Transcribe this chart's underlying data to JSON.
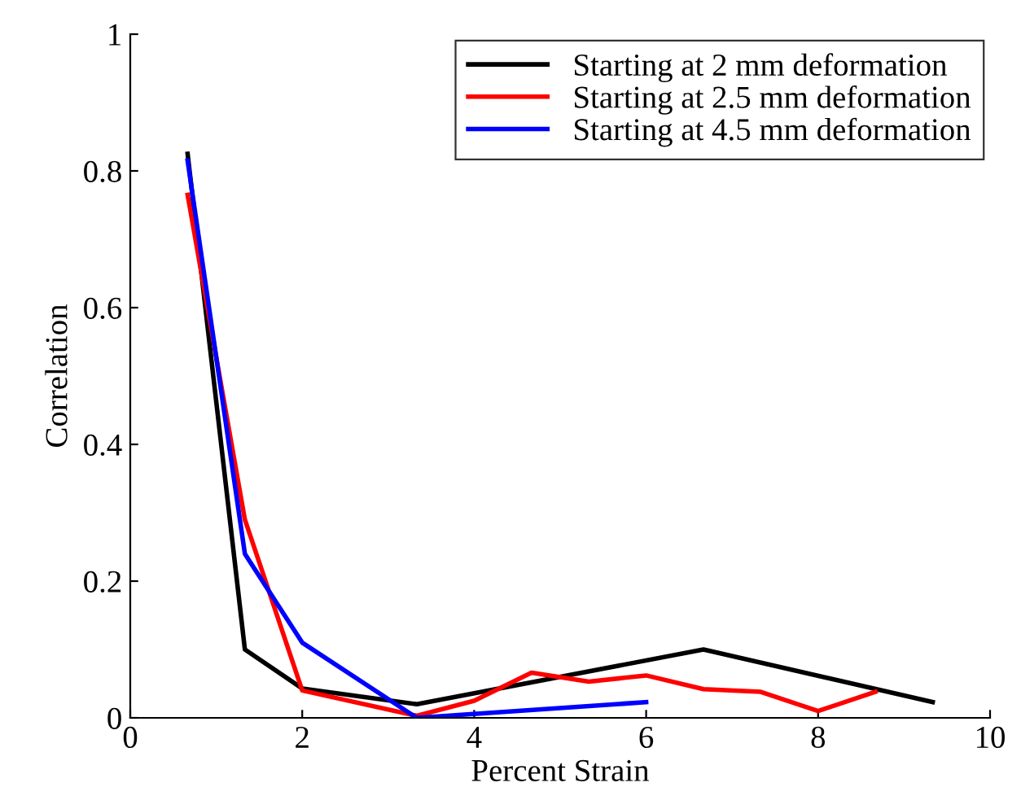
{
  "chart_data": {
    "type": "line",
    "xlabel": "Percent Strain",
    "ylabel": "Correlation",
    "xlim": [
      0,
      10
    ],
    "ylim": [
      0,
      1
    ],
    "xticks": [
      0,
      2,
      4,
      6,
      8,
      10
    ],
    "yticks": [
      0,
      0.2,
      0.4,
      0.6,
      0.8,
      1
    ],
    "legend": "top right",
    "grid": false,
    "series": [
      {
        "name": "Starting at 2 mm deformation",
        "color": "#000000",
        "x": [
          0.667,
          1.333,
          2,
          3.333,
          6.667,
          9.333
        ],
        "values": [
          0.825,
          0.1,
          0.043,
          0.02,
          0.1,
          0.023
        ]
      },
      {
        "name": "Starting at 2.5 mm deformation",
        "color": "#ff0000",
        "x": [
          0.667,
          1.333,
          2,
          3.333,
          4,
          4.667,
          5.333,
          6,
          6.667,
          7.333,
          8,
          8.667
        ],
        "values": [
          0.765,
          0.29,
          0.04,
          0.003,
          0.025,
          0.066,
          0.053,
          0.062,
          0.042,
          0.038,
          0.01,
          0.038
        ]
      },
      {
        "name": "Starting at 4.5 mm deformation",
        "color": "#0000ff",
        "x": [
          0.667,
          1.333,
          2,
          3.333,
          6
        ],
        "values": [
          0.815,
          0.24,
          0.11,
          0.0,
          0.023
        ]
      }
    ]
  }
}
